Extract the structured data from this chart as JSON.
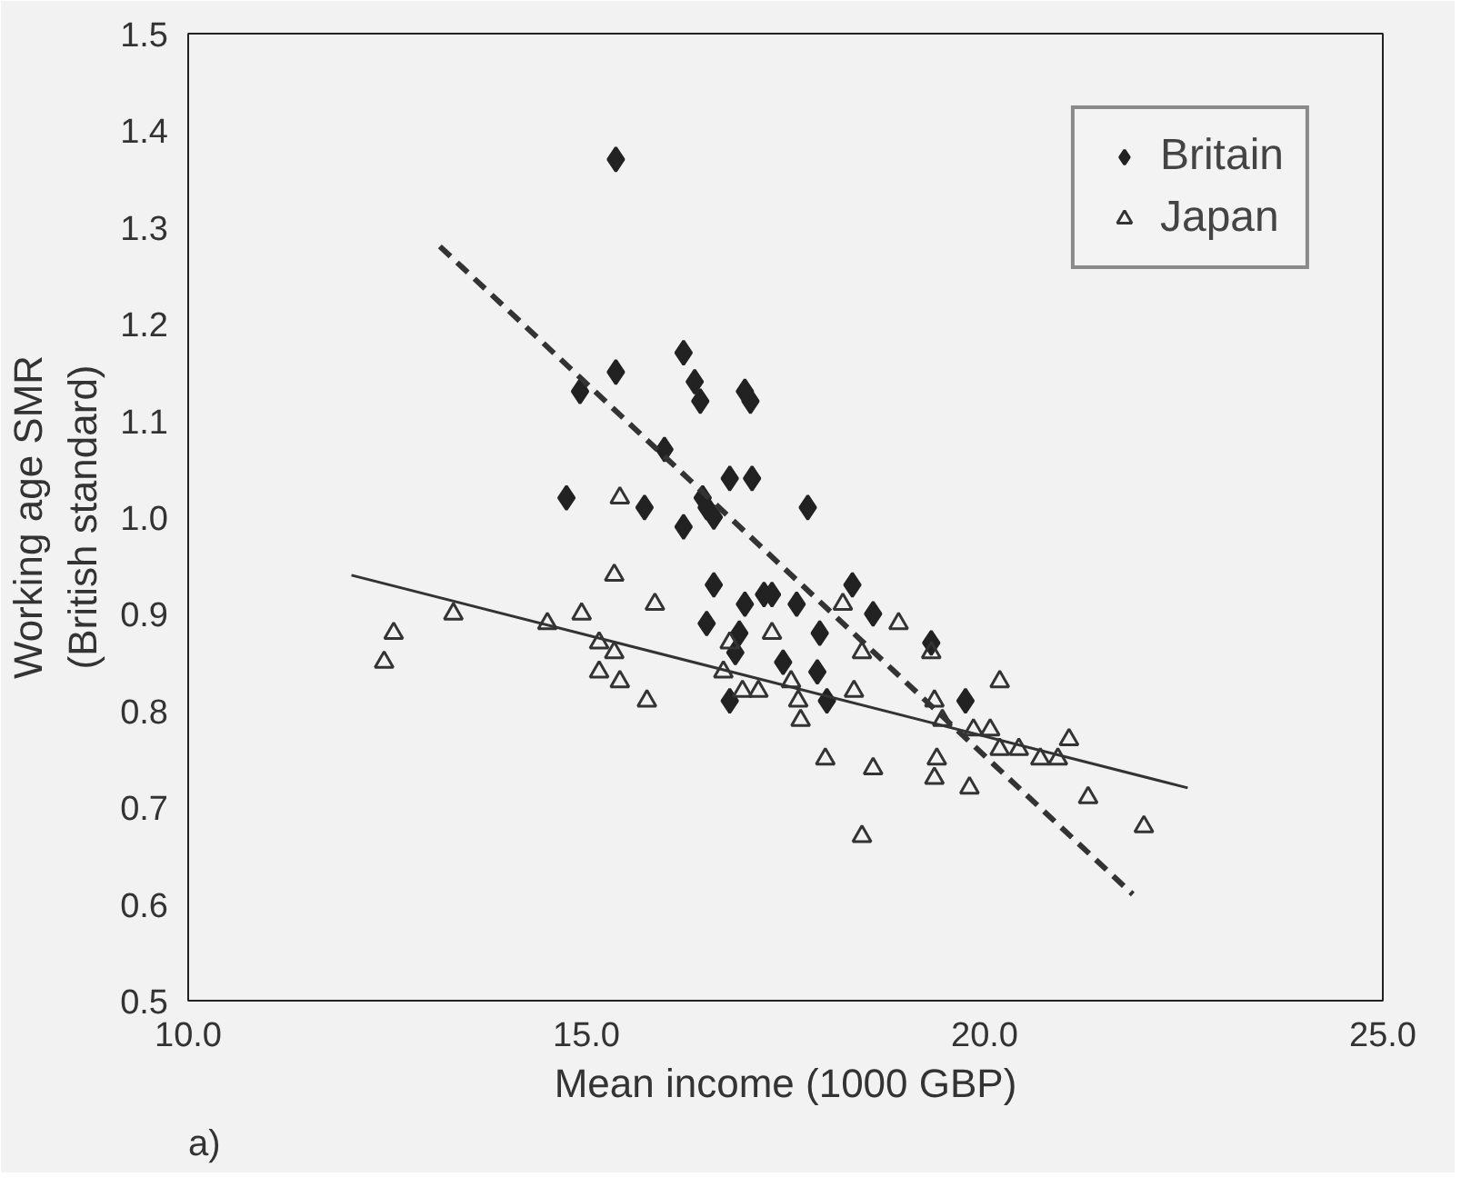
{
  "chart_data": {
    "type": "scatter",
    "xlabel": "Mean income (1000 GBP)",
    "ylabel": "Working age SMR\n(British standard)",
    "annotations": [
      "a)"
    ],
    "xlim": [
      10.0,
      25.0
    ],
    "xticks": [
      {
        "value": 10,
        "label": "10.0"
      },
      {
        "value": 15,
        "label": "15.0"
      },
      {
        "value": 20,
        "label": "20.0"
      },
      {
        "value": 25,
        "label": "25.0"
      }
    ],
    "ylim": [
      0.5,
      1.5
    ],
    "yticks": [
      {
        "value": 0.5,
        "label": "0.5"
      },
      {
        "value": 0.6,
        "label": "0.6"
      },
      {
        "value": 0.7,
        "label": "0.7"
      },
      {
        "value": 0.8,
        "label": "0.8"
      },
      {
        "value": 0.9,
        "label": "0.9"
      },
      {
        "value": 1.0,
        "label": "1.0"
      },
      {
        "value": 1.1,
        "label": "1.1"
      },
      {
        "value": 1.2,
        "label": "1.2"
      },
      {
        "value": 1.3,
        "label": "1.3"
      },
      {
        "value": 1.4,
        "label": "1.4"
      },
      {
        "value": 1.5,
        "label": "1.5"
      }
    ],
    "grid": false,
    "legend": "top right",
    "series": [
      {
        "name": "Britain",
        "marker": "diamond",
        "color": "#222222",
        "x": [
          15.37,
          14.92,
          15.37,
          16.22,
          16.36,
          16.43,
          16.99,
          17.06,
          15.98,
          14.75,
          15.73,
          16.8,
          17.08,
          16.46,
          16.51,
          16.6,
          16.22,
          17.78,
          16.6,
          16.99,
          17.23,
          17.33,
          17.64,
          16.51,
          16.92,
          16.87,
          17.93,
          18.34,
          18.6,
          17.47,
          17.9,
          16.8,
          18.02,
          19.33,
          19.76
        ],
        "values": [
          1.37,
          1.13,
          1.15,
          1.17,
          1.14,
          1.12,
          1.13,
          1.12,
          1.07,
          1.02,
          1.01,
          1.04,
          1.04,
          1.02,
          1.01,
          1.0,
          0.99,
          1.01,
          0.93,
          0.91,
          0.92,
          0.92,
          0.91,
          0.89,
          0.88,
          0.86,
          0.88,
          0.93,
          0.9,
          0.85,
          0.84,
          0.81,
          0.81,
          0.87,
          0.81
        ]
      },
      {
        "name": "Japan",
        "marker": "triangle",
        "color": "#333333",
        "x": [
          12.46,
          12.58,
          13.33,
          14.51,
          14.94,
          15.16,
          15.16,
          15.35,
          15.42,
          15.42,
          15.35,
          15.86,
          15.76,
          16.72,
          16.8,
          16.96,
          17.16,
          17.33,
          17.57,
          17.66,
          17.69,
          18.0,
          18.36,
          18.22,
          18.46,
          18.6,
          18.46,
          18.92,
          19.33,
          19.37,
          19.47,
          19.4,
          19.37,
          19.81,
          19.86,
          20.07,
          20.19,
          20.19,
          20.43,
          20.7,
          20.92,
          21.06,
          21.3,
          22.0
        ],
        "values": [
          0.85,
          0.88,
          0.9,
          0.89,
          0.9,
          0.87,
          0.84,
          0.86,
          0.83,
          1.02,
          0.94,
          0.91,
          0.81,
          0.84,
          0.87,
          0.82,
          0.82,
          0.88,
          0.83,
          0.81,
          0.79,
          0.75,
          0.82,
          0.91,
          0.86,
          0.74,
          0.67,
          0.89,
          0.86,
          0.81,
          0.79,
          0.75,
          0.73,
          0.72,
          0.78,
          0.78,
          0.83,
          0.76,
          0.76,
          0.75,
          0.75,
          0.77,
          0.71,
          0.68
        ]
      },
      {
        "type": "line",
        "line_style": "dashed",
        "color": "#333333",
        "x": [
          13.16,
          21.86
        ],
        "values": [
          1.28,
          0.61
        ]
      },
      {
        "type": "line",
        "line_style": "solid",
        "color": "#333333",
        "x": [
          12.05,
          22.55
        ],
        "values": [
          0.94,
          0.72
        ]
      }
    ]
  }
}
